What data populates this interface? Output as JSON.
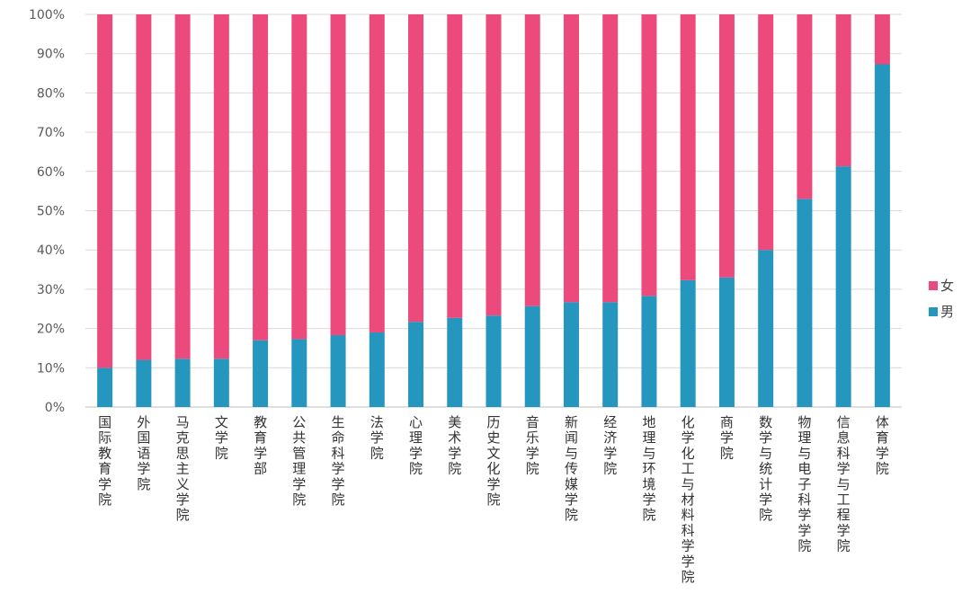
{
  "chart_data": {
    "type": "bar",
    "stacked": true,
    "percent": true,
    "categories": [
      "国际教育学院",
      "外国语学院",
      "马克思主义学院",
      "文学院",
      "教育学部",
      "公共管理学院",
      "生命科学学院",
      "法学院",
      "心理学院",
      "美术学院",
      "历史文化学院",
      "音乐学院",
      "新闻与传媒学院",
      "经济学院",
      "地理与环境学院",
      "化学化工与材料科学学院",
      "商学院",
      "数学与统计学院",
      "物理与电子科学学院",
      "信息科学与工程学院",
      "体育学院"
    ],
    "series": [
      {
        "name": "男",
        "color": "#2596BE",
        "values": [
          10,
          12,
          12.3,
          12.3,
          17,
          17.3,
          18.3,
          19,
          21.7,
          22.7,
          23.3,
          25.7,
          26.7,
          26.7,
          28.3,
          32.3,
          33,
          40,
          53,
          61.3,
          87.3
        ]
      },
      {
        "name": "女",
        "color": "#EC4A7C",
        "values": [
          90,
          88,
          87.7,
          87.7,
          83,
          82.7,
          81.7,
          81,
          78.3,
          77.3,
          76.7,
          74.3,
          73.3,
          73.3,
          71.7,
          67.7,
          67,
          60,
          47,
          38.7,
          12.7
        ]
      }
    ],
    "yticks": [
      "0%",
      "10%",
      "20%",
      "30%",
      "40%",
      "50%",
      "60%",
      "70%",
      "80%",
      "90%",
      "100%"
    ],
    "ylim": [
      0,
      100
    ],
    "grid": true,
    "legend_position": "right",
    "legend_order": [
      "女",
      "男"
    ]
  }
}
